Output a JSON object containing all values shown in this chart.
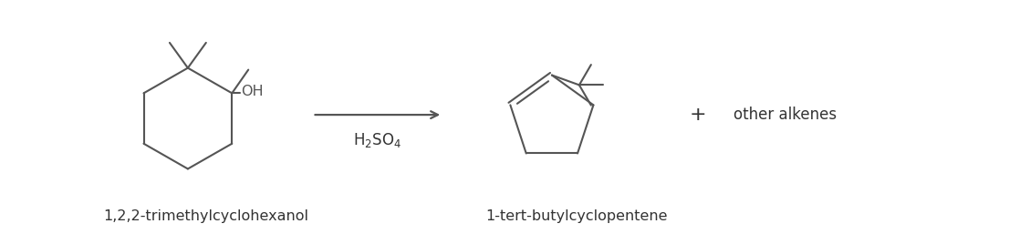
{
  "bg_color": "#ffffff",
  "line_color": "#555555",
  "line_width": 1.5,
  "label1": "1,2,2-trimethylcyclohexanol",
  "label2": "1-tert-butylcyclopentene",
  "label3": "other alkenes",
  "reagent": "H$_2$SO$_4$",
  "plus_sign": "+",
  "font_size_labels": 11.5,
  "font_size_reagent": 12
}
